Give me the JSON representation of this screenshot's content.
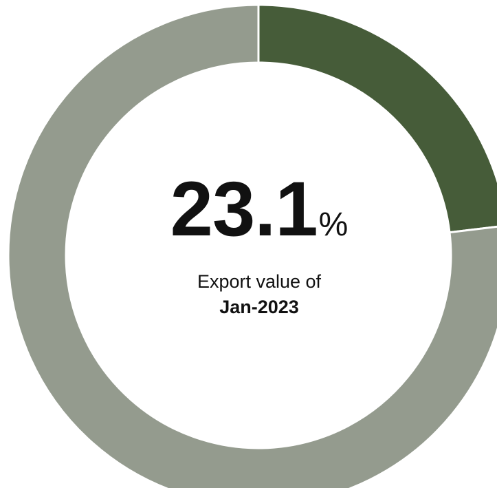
{
  "chart_data": {
    "type": "pie",
    "variant": "donut",
    "title": "",
    "slices": [
      {
        "label": "",
        "value": 23.1,
        "color": "#465c39"
      },
      {
        "label": "",
        "value": 76.9,
        "color": "#949b8e"
      }
    ],
    "center": {
      "value": "23.1",
      "unit": "%",
      "caption": "Export value of",
      "period": "Jan-2023"
    }
  }
}
